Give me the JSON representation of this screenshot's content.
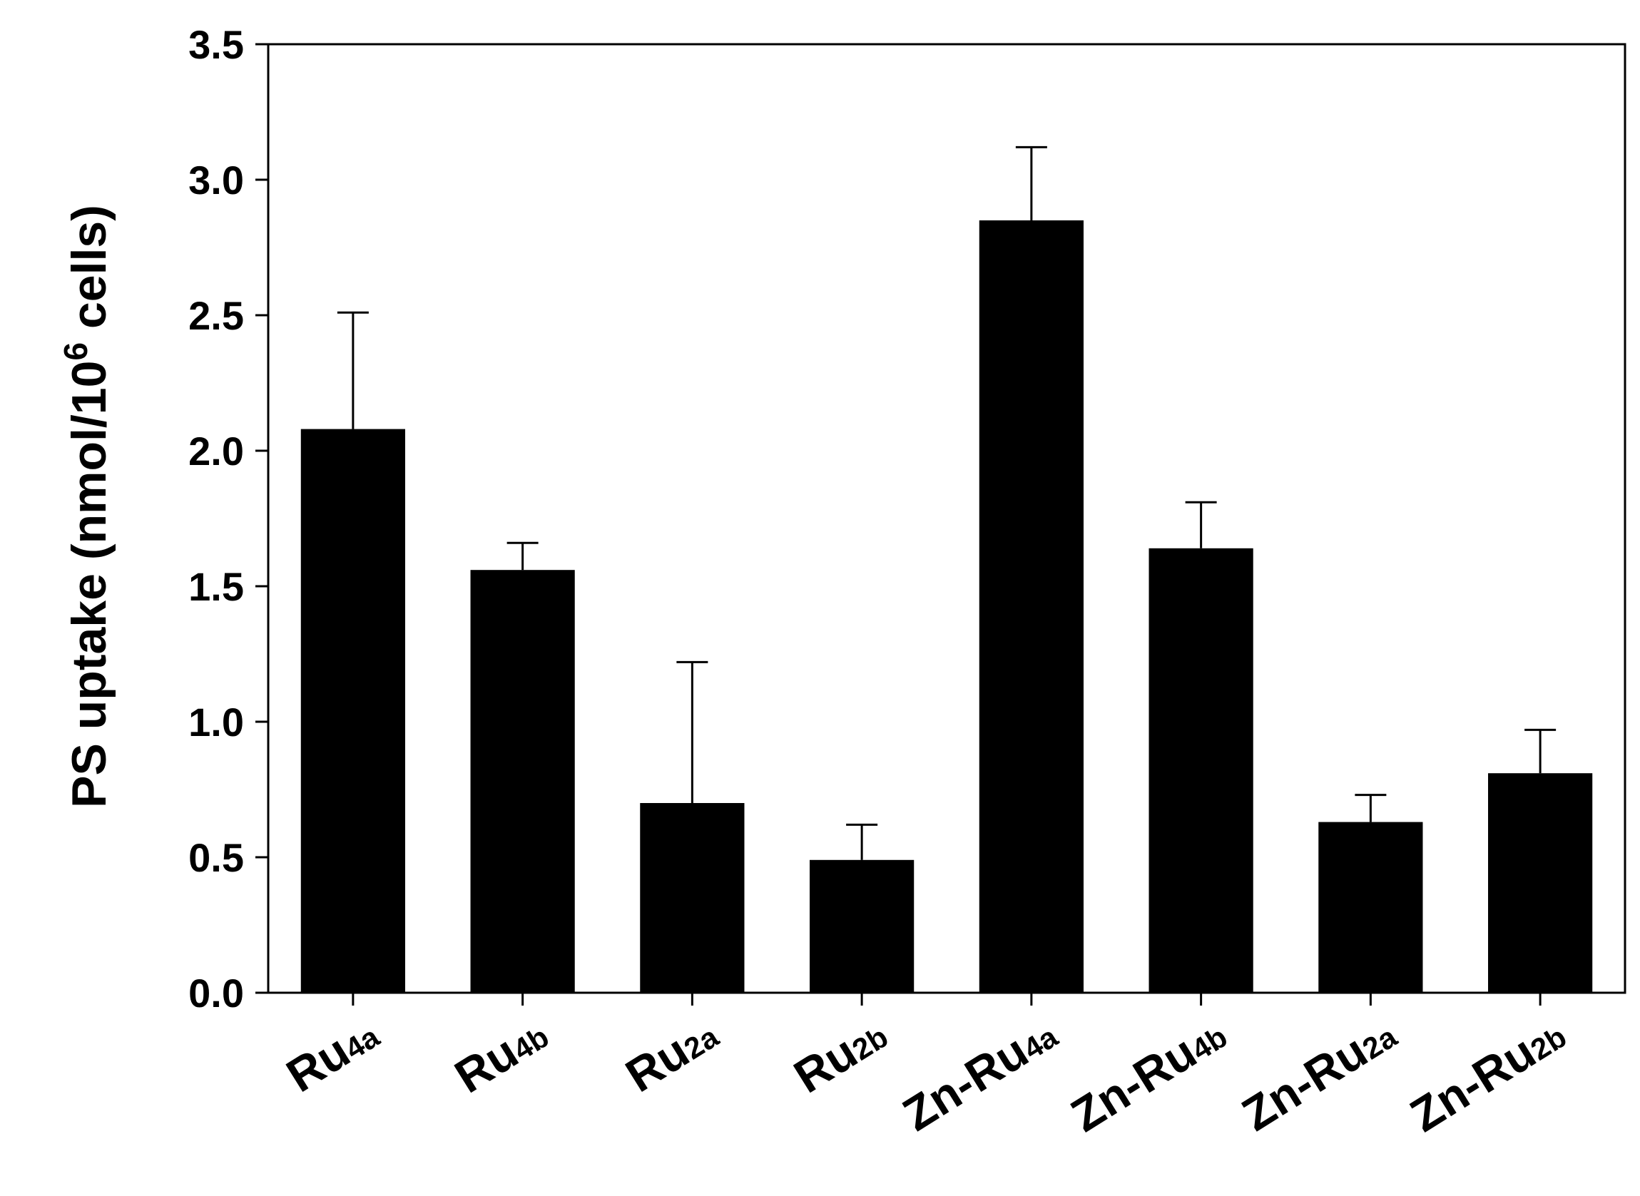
{
  "chart_data": {
    "type": "bar",
    "categories": [
      {
        "main": "Ru",
        "sub": "4a"
      },
      {
        "main": "Ru",
        "sub": "4b"
      },
      {
        "main": "Ru",
        "sub": "2a"
      },
      {
        "main": "Ru",
        "sub": "2b"
      },
      {
        "main": "Zn-Ru",
        "sub": "4a"
      },
      {
        "main": "Zn-Ru",
        "sub": "4b"
      },
      {
        "main": "Zn-Ru",
        "sub": "2a"
      },
      {
        "main": "Zn-Ru",
        "sub": "2b"
      }
    ],
    "values": [
      2.08,
      1.56,
      0.7,
      0.49,
      2.85,
      1.64,
      0.63,
      0.81
    ],
    "errors": [
      0.43,
      0.1,
      0.52,
      0.13,
      0.27,
      0.17,
      0.1,
      0.16
    ],
    "ylabel": {
      "prefix": "PS uptake (nmol/10",
      "sup": "6",
      "suffix": " cells)"
    },
    "ylim": [
      0,
      3.5
    ],
    "yticks": [
      "0.0",
      "0.5",
      "1.0",
      "1.5",
      "2.0",
      "2.5",
      "3.0",
      "3.5"
    ],
    "bar_color": "#000000",
    "grid": false,
    "legend": "none"
  }
}
